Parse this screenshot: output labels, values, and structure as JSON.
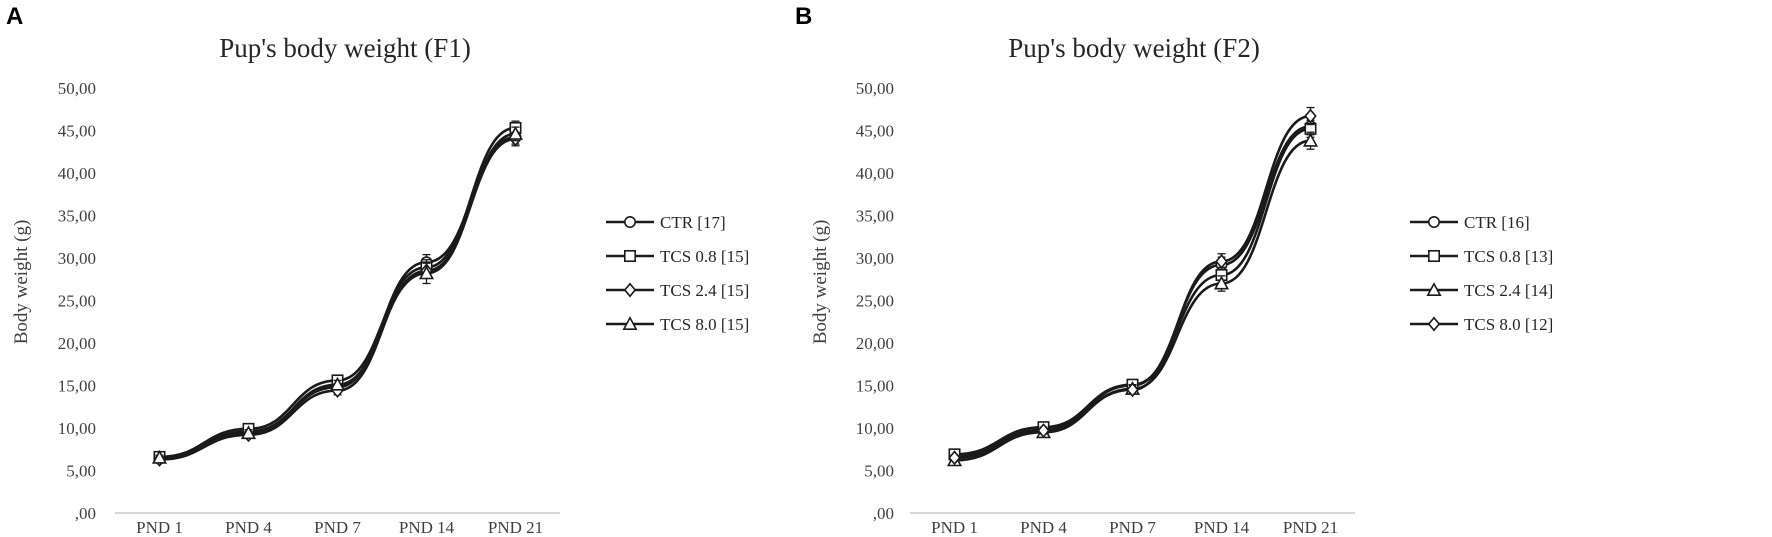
{
  "chart_data": [
    {
      "type": "line",
      "panel_label": "A",
      "title": "Pup's body weight (F1)",
      "xlabel": "",
      "ylabel": "Body weight (g)",
      "ylim": [
        0,
        50
      ],
      "ytick_labels": [
        ",00",
        "5,00",
        "10,00",
        "15,00",
        "20,00",
        "25,00",
        "30,00",
        "35,00",
        "40,00",
        "45,00",
        "50,00"
      ],
      "categories": [
        "PND 1",
        "PND 4",
        "PND 7",
        "PND 14",
        "PND 21"
      ],
      "grid": false,
      "legend_position": "right",
      "series": [
        {
          "name": "CTR [17]",
          "marker": "circle",
          "values": [
            6.4,
            9.6,
            14.8,
            29.5,
            44.2
          ],
          "errors": [
            0.3,
            0.4,
            0.5,
            0.9,
            0.8
          ]
        },
        {
          "name": "TCS 0.8 [15]",
          "marker": "square",
          "values": [
            6.6,
            9.9,
            15.6,
            28.9,
            45.3
          ],
          "errors": [
            0.3,
            0.4,
            0.5,
            0.9,
            0.8
          ]
        },
        {
          "name": "TCS 2.4 [15]",
          "marker": "diamond",
          "values": [
            6.3,
            9.2,
            14.4,
            28.5,
            44.0
          ],
          "errors": [
            0.3,
            0.4,
            0.5,
            0.9,
            0.8
          ]
        },
        {
          "name": "TCS 8.0 [15]",
          "marker": "triangle",
          "values": [
            6.5,
            9.4,
            15.1,
            28.2,
            44.6
          ],
          "errors": [
            0.3,
            0.4,
            0.5,
            1.2,
            0.8
          ]
        }
      ]
    },
    {
      "type": "line",
      "panel_label": "B",
      "title": "Pup's body weight (F2)",
      "xlabel": "",
      "ylabel": "Body weight (g)",
      "ylim": [
        0,
        50
      ],
      "ytick_labels": [
        ",00",
        "5,00",
        "10,00",
        "15,00",
        "20,00",
        "25,00",
        "30,00",
        "35,00",
        "40,00",
        "45,00",
        "50,00"
      ],
      "categories": [
        "PND 1",
        "PND 4",
        "PND 7",
        "PND 14",
        "PND 21"
      ],
      "grid": false,
      "legend_position": "right",
      "series": [
        {
          "name": "CTR [16]",
          "marker": "circle",
          "values": [
            6.6,
            9.8,
            15.0,
            29.2,
            45.5
          ],
          "errors": [
            0.3,
            0.4,
            0.5,
            0.9,
            1.0
          ]
        },
        {
          "name": "TCS 0.8 [13]",
          "marker": "square",
          "values": [
            6.9,
            10.1,
            15.1,
            28.0,
            45.2
          ],
          "errors": [
            0.3,
            0.4,
            0.5,
            0.9,
            1.0
          ]
        },
        {
          "name": "TCS 2.4 [14]",
          "marker": "triangle",
          "values": [
            6.2,
            9.5,
            14.6,
            27.0,
            43.8
          ],
          "errors": [
            0.3,
            0.4,
            0.5,
            0.9,
            1.0
          ]
        },
        {
          "name": "TCS 8.0 [12]",
          "marker": "diamond",
          "values": [
            6.5,
            9.7,
            14.5,
            29.6,
            46.7
          ],
          "errors": [
            0.3,
            0.4,
            0.5,
            0.9,
            1.0
          ]
        }
      ]
    }
  ]
}
